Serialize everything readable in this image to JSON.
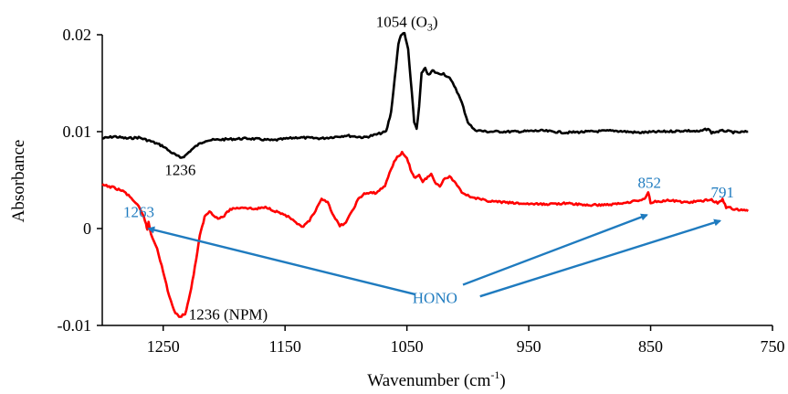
{
  "chart_data": {
    "type": "line",
    "title": "",
    "xlabel": "Wavenumber (cm-1)",
    "xlabel_parts": {
      "main": "Wavenumber  (cm",
      "sup": "-1",
      "end": ")"
    },
    "ylabel": "Absorbance",
    "xlim": [
      1300,
      750
    ],
    "x_reversed": true,
    "ylim": [
      -0.01,
      0.02
    ],
    "x_ticks": [
      {
        "value": 1250,
        "label": "1250"
      },
      {
        "value": 1150,
        "label": "1150"
      },
      {
        "value": 1050,
        "label": "1050"
      },
      {
        "value": 950,
        "label": "950"
      },
      {
        "value": 850,
        "label": "850"
      },
      {
        "value": 750,
        "label": "750"
      }
    ],
    "y_ticks": [
      {
        "value": 0.02,
        "label": "0.02"
      },
      {
        "value": 0.01,
        "label": "0.01"
      },
      {
        "value": 0,
        "label": "0"
      },
      {
        "value": -0.01,
        "label": "-0.01"
      }
    ],
    "grid": false,
    "legend": "none",
    "series": [
      {
        "color": "#000000",
        "points": [
          [
            1300,
            0.0093
          ],
          [
            1290,
            0.0095
          ],
          [
            1280,
            0.0093
          ],
          [
            1270,
            0.0094
          ],
          [
            1260,
            0.009
          ],
          [
            1250,
            0.0085
          ],
          [
            1245,
            0.008
          ],
          [
            1240,
            0.0076
          ],
          [
            1236,
            0.0073
          ],
          [
            1232,
            0.0075
          ],
          [
            1228,
            0.008
          ],
          [
            1222,
            0.0086
          ],
          [
            1215,
            0.0091
          ],
          [
            1200,
            0.0092
          ],
          [
            1180,
            0.0093
          ],
          [
            1160,
            0.0091
          ],
          [
            1140,
            0.0094
          ],
          [
            1120,
            0.0093
          ],
          [
            1100,
            0.0096
          ],
          [
            1085,
            0.0094
          ],
          [
            1075,
            0.0097
          ],
          [
            1067,
            0.01
          ],
          [
            1063,
            0.012
          ],
          [
            1060,
            0.0155
          ],
          [
            1057,
            0.019
          ],
          [
            1055,
            0.02
          ],
          [
            1052,
            0.0201
          ],
          [
            1049,
            0.0185
          ],
          [
            1046,
            0.014
          ],
          [
            1044,
            0.011
          ],
          [
            1042,
            0.0103
          ],
          [
            1040,
            0.0125
          ],
          [
            1038,
            0.016
          ],
          [
            1035,
            0.0165
          ],
          [
            1032,
            0.0158
          ],
          [
            1029,
            0.0163
          ],
          [
            1025,
            0.016
          ],
          [
            1020,
            0.016
          ],
          [
            1015,
            0.0155
          ],
          [
            1010,
            0.0145
          ],
          [
            1005,
            0.013
          ],
          [
            1000,
            0.011
          ],
          [
            995,
            0.0102
          ],
          [
            985,
            0.01
          ],
          [
            960,
            0.01
          ],
          [
            940,
            0.0101
          ],
          [
            920,
            0.0099
          ],
          [
            900,
            0.01
          ],
          [
            880,
            0.0101
          ],
          [
            860,
            0.0099
          ],
          [
            840,
            0.01
          ],
          [
            820,
            0.0101
          ],
          [
            810,
            0.01
          ],
          [
            803,
            0.0103
          ],
          [
            800,
            0.0099
          ],
          [
            790,
            0.0101
          ],
          [
            780,
            0.0099
          ],
          [
            770,
            0.01
          ]
        ]
      },
      {
        "color": "#ff0000",
        "points": [
          [
            1300,
            0.0045
          ],
          [
            1290,
            0.0042
          ],
          [
            1282,
            0.0038
          ],
          [
            1275,
            0.003
          ],
          [
            1270,
            0.0022
          ],
          [
            1266,
            0.0012
          ],
          [
            1264,
            0.0005
          ],
          [
            1263,
            -0.0002
          ],
          [
            1262,
            0.0007
          ],
          [
            1260,
            -0.0006
          ],
          [
            1255,
            -0.002
          ],
          [
            1250,
            -0.0045
          ],
          [
            1245,
            -0.007
          ],
          [
            1240,
            -0.0088
          ],
          [
            1236,
            -0.0091
          ],
          [
            1232,
            -0.0088
          ],
          [
            1228,
            -0.0068
          ],
          [
            1224,
            -0.004
          ],
          [
            1220,
            -0.0008
          ],
          [
            1216,
            0.0012
          ],
          [
            1212,
            0.0018
          ],
          [
            1205,
            0.001
          ],
          [
            1200,
            0.0013
          ],
          [
            1195,
            0.002
          ],
          [
            1185,
            0.0022
          ],
          [
            1175,
            0.002
          ],
          [
            1165,
            0.0022
          ],
          [
            1158,
            0.0018
          ],
          [
            1150,
            0.0014
          ],
          [
            1145,
            0.001
          ],
          [
            1140,
            0.0004
          ],
          [
            1135,
            0.0002
          ],
          [
            1130,
            0.0008
          ],
          [
            1125,
            0.0018
          ],
          [
            1120,
            0.003
          ],
          [
            1115,
            0.0028
          ],
          [
            1110,
            0.0012
          ],
          [
            1105,
            0.0003
          ],
          [
            1100,
            0.0006
          ],
          [
            1095,
            0.0018
          ],
          [
            1090,
            0.003
          ],
          [
            1085,
            0.0036
          ],
          [
            1075,
            0.0037
          ],
          [
            1068,
            0.0044
          ],
          [
            1063,
            0.0062
          ],
          [
            1058,
            0.0074
          ],
          [
            1054,
            0.0078
          ],
          [
            1050,
            0.0072
          ],
          [
            1046,
            0.0058
          ],
          [
            1043,
            0.0052
          ],
          [
            1040,
            0.0056
          ],
          [
            1037,
            0.0048
          ],
          [
            1034,
            0.0052
          ],
          [
            1030,
            0.0056
          ],
          [
            1027,
            0.0048
          ],
          [
            1023,
            0.0044
          ],
          [
            1020,
            0.005
          ],
          [
            1015,
            0.0054
          ],
          [
            1010,
            0.0047
          ],
          [
            1005,
            0.0038
          ],
          [
            1000,
            0.0034
          ],
          [
            990,
            0.003
          ],
          [
            980,
            0.0028
          ],
          [
            960,
            0.0026
          ],
          [
            940,
            0.0025
          ],
          [
            920,
            0.0026
          ],
          [
            900,
            0.0024
          ],
          [
            880,
            0.0025
          ],
          [
            870,
            0.0027
          ],
          [
            860,
            0.0029
          ],
          [
            855,
            0.003
          ],
          [
            852,
            0.0038
          ],
          [
            850,
            0.0027
          ],
          [
            845,
            0.0028
          ],
          [
            835,
            0.0029
          ],
          [
            820,
            0.0027
          ],
          [
            810,
            0.0028
          ],
          [
            800,
            0.003
          ],
          [
            795,
            0.0026
          ],
          [
            791,
            0.003
          ],
          [
            788,
            0.0022
          ],
          [
            780,
            0.002
          ],
          [
            770,
            0.0018
          ]
        ]
      }
    ],
    "annotations": [
      {
        "id": "o3",
        "text": "1054 (O",
        "sub": "3",
        "end": ")",
        "color": "#000000",
        "x": 1050,
        "y": 0.0208,
        "anchor": "middle"
      },
      {
        "id": "black-1236",
        "text": "1236",
        "sub": "",
        "end": "",
        "color": "#000000",
        "x": 1236,
        "y": 0.0055,
        "anchor": "middle"
      },
      {
        "id": "npm",
        "text": "1236 (NPM)",
        "sub": "",
        "end": "",
        "color": "#000000",
        "x": 1229,
        "y": -0.0094,
        "anchor": "start"
      },
      {
        "id": "p1263",
        "text": "1263",
        "sub": "",
        "end": "",
        "color": "#1f7bbf",
        "x": 1270,
        "y": 0.0012,
        "anchor": "middle"
      },
      {
        "id": "p852",
        "text": "852",
        "sub": "",
        "end": "",
        "color": "#1f7bbf",
        "x": 851,
        "y": 0.0042,
        "anchor": "middle"
      },
      {
        "id": "p791",
        "text": "791",
        "sub": "",
        "end": "",
        "color": "#1f7bbf",
        "x": 791,
        "y": 0.0032,
        "anchor": "middle"
      },
      {
        "id": "hono",
        "text": "HONO",
        "sub": "",
        "end": "",
        "color": "#1f7bbf",
        "x": 1027,
        "y": -0.0077,
        "anchor": "middle"
      }
    ],
    "arrows": [
      {
        "from": [
          1043,
          -0.0068
        ],
        "to": [
          1262,
          0.0
        ],
        "color": "#1f7bbf"
      },
      {
        "from": [
          1004,
          -0.0058
        ],
        "to": [
          853,
          0.0014
        ],
        "color": "#1f7bbf"
      },
      {
        "from": [
          990,
          -0.007
        ],
        "to": [
          793,
          0.0008
        ],
        "color": "#1f7bbf"
      }
    ]
  }
}
